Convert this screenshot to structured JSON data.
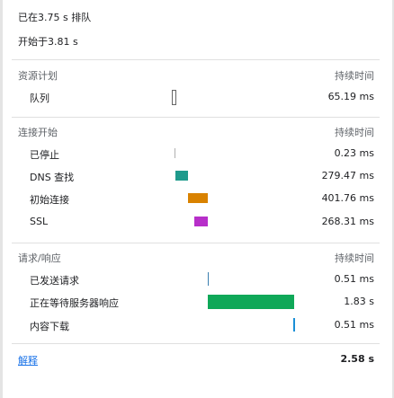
{
  "header": {
    "queued_at": "已在3.75 s 排队",
    "started_at": "开始于3.81 s"
  },
  "sections": {
    "resource_scheduling": {
      "label": "资源计划",
      "duration_header": "持续时间",
      "rows": [
        {
          "label": "队列",
          "value": "65.19 ms"
        }
      ]
    },
    "connection_start": {
      "label": "连接开始",
      "duration_header": "持续时间",
      "rows": [
        {
          "label": "已停止",
          "value": "0.23 ms"
        },
        {
          "label": "DNS 查找",
          "value": "279.47 ms"
        },
        {
          "label": "初始连接",
          "value": "401.76 ms"
        },
        {
          "label": "SSL",
          "value": "268.31 ms"
        }
      ]
    },
    "request_response": {
      "label": "请求/响应",
      "duration_header": "持续时间",
      "rows": [
        {
          "label": "已发送请求",
          "value": "0.51 ms"
        },
        {
          "label": "正在等待服务器响应",
          "value": "1.83 s"
        },
        {
          "label": "内容下载",
          "value": "0.51 ms"
        }
      ]
    }
  },
  "footer": {
    "explanation_link": "解释",
    "total": "2.58 s"
  },
  "colors": {
    "queue": "#ffffff",
    "stalled": "#b0b0b0",
    "dns": "#1f9a8c",
    "initial_connection": "#d98200",
    "ssl": "#b72fc9",
    "request_sent": "#3b7fb0",
    "waiting": "#0fa858",
    "content_download": "#1a8fd6"
  }
}
